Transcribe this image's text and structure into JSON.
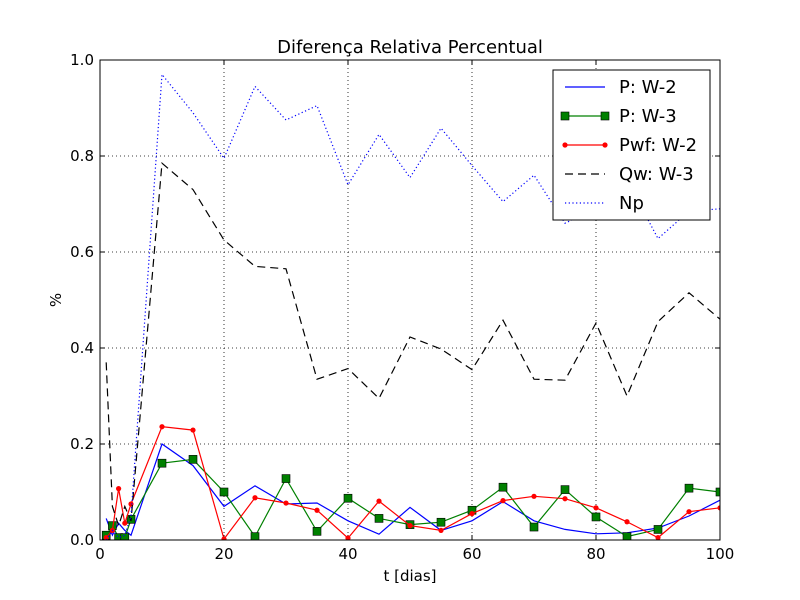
{
  "chart_data": {
    "type": "line",
    "title": "Diferença Relativa Percentual",
    "xlabel": "t [dias]",
    "ylabel": "%",
    "xlim": [
      0,
      100
    ],
    "ylim": [
      0,
      1.0
    ],
    "xticks": [
      0,
      20,
      40,
      60,
      80,
      100
    ],
    "yticks": [
      0.0,
      0.2,
      0.4,
      0.6,
      0.8,
      1.0
    ],
    "xtick_labels": [
      "0",
      "20",
      "40",
      "60",
      "80",
      "100"
    ],
    "ytick_labels": [
      "0.0",
      "0.2",
      "0.4",
      "0.6",
      "0.8",
      "1.0"
    ],
    "grid": true,
    "legend_position": "top-right",
    "series": [
      {
        "name": "P: W-2",
        "color": "#0000ff",
        "style": "solid",
        "marker": "none",
        "x": [
          1,
          2,
          3,
          4,
          5,
          10,
          15,
          20,
          25,
          30,
          35,
          40,
          45,
          50,
          55,
          60,
          65,
          70,
          75,
          80,
          85,
          90,
          95,
          100
        ],
        "y": [
          0.045,
          0.01,
          0.035,
          0.02,
          0.01,
          0.2,
          0.155,
          0.07,
          0.113,
          0.075,
          0.077,
          0.04,
          0.012,
          0.068,
          0.02,
          0.04,
          0.08,
          0.04,
          0.022,
          0.013,
          0.015,
          0.025,
          0.05,
          0.083
        ]
      },
      {
        "name": "P: W-3",
        "color": "#008000",
        "style": "solid",
        "marker": "square",
        "x": [
          1,
          2,
          3,
          4,
          5,
          10,
          15,
          20,
          25,
          30,
          35,
          40,
          45,
          50,
          55,
          60,
          65,
          70,
          75,
          80,
          85,
          90,
          95,
          100
        ],
        "y": [
          0.01,
          0.03,
          0.005,
          0.005,
          0.043,
          0.16,
          0.168,
          0.1,
          0.007,
          0.128,
          0.018,
          0.087,
          0.045,
          0.032,
          0.037,
          0.062,
          0.11,
          0.027,
          0.105,
          0.048,
          0.007,
          0.022,
          0.108,
          0.1
        ]
      },
      {
        "name": "Pwf: W-2",
        "color": "#ff0000",
        "style": "solid",
        "marker": "dot",
        "x": [
          1,
          2,
          3,
          4,
          5,
          10,
          15,
          20,
          25,
          30,
          35,
          40,
          45,
          50,
          55,
          60,
          65,
          70,
          75,
          80,
          85,
          90,
          95,
          100
        ],
        "y": [
          0.005,
          0.02,
          0.107,
          0.035,
          0.075,
          0.236,
          0.229,
          0.002,
          0.088,
          0.077,
          0.062,
          0.004,
          0.081,
          0.03,
          0.02,
          0.055,
          0.082,
          0.091,
          0.086,
          0.067,
          0.038,
          0.005,
          0.059,
          0.067
        ]
      },
      {
        "name": "Qw: W-3",
        "color": "#000000",
        "style": "dashed",
        "marker": "none",
        "x": [
          1,
          2,
          3,
          4,
          5,
          10,
          15,
          20,
          25,
          30,
          35,
          40,
          45,
          50,
          55,
          60,
          65,
          70,
          75,
          80,
          85,
          90,
          95,
          100
        ],
        "y": [
          0.37,
          0.07,
          0.03,
          0.07,
          0.04,
          0.785,
          0.73,
          0.625,
          0.57,
          0.565,
          0.335,
          0.357,
          0.295,
          0.423,
          0.398,
          0.355,
          0.458,
          0.335,
          0.333,
          0.452,
          0.3,
          0.455,
          0.515,
          0.46
        ]
      },
      {
        "name": "Np",
        "color": "#0000ff",
        "style": "dotted",
        "marker": "none",
        "x": [
          1,
          2,
          3,
          4,
          5,
          10,
          15,
          20,
          25,
          30,
          35,
          40,
          45,
          50,
          55,
          60,
          65,
          70,
          75,
          80,
          85,
          90,
          95,
          100
        ],
        "y": [
          0.0,
          0.02,
          0.005,
          0.01,
          0.05,
          0.97,
          0.89,
          0.795,
          0.945,
          0.875,
          0.905,
          0.74,
          0.845,
          0.755,
          0.858,
          0.78,
          0.705,
          0.76,
          0.66,
          0.69,
          0.75,
          0.628,
          0.685,
          0.69
        ]
      }
    ]
  }
}
